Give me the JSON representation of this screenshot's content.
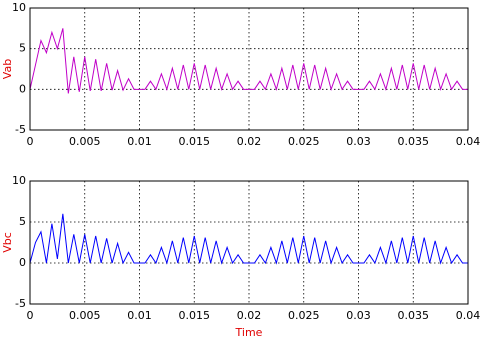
{
  "chart_data": [
    {
      "type": "line",
      "ylabel": "Vab",
      "x": [
        0,
        0.0005,
        0.001,
        0.0015,
        0.002,
        0.0025,
        0.003,
        0.0035,
        0.004,
        0.0045,
        0.005,
        0.0055,
        0.006,
        0.0065,
        0.007,
        0.0075,
        0.008,
        0.0085,
        0.009,
        0.0095,
        0.01,
        0.0105,
        0.011,
        0.0115,
        0.012,
        0.0125,
        0.013,
        0.0135,
        0.014,
        0.0145,
        0.015,
        0.0155,
        0.016,
        0.0165,
        0.017,
        0.0175,
        0.018,
        0.0185,
        0.019,
        0.0195,
        0.02,
        0.0205,
        0.021,
        0.0215,
        0.022,
        0.0225,
        0.023,
        0.0235,
        0.024,
        0.0245,
        0.025,
        0.0255,
        0.026,
        0.0265,
        0.027,
        0.0275,
        0.028,
        0.0285,
        0.029,
        0.0295,
        0.03,
        0.0305,
        0.031,
        0.0315,
        0.032,
        0.0325,
        0.033,
        0.0335,
        0.034,
        0.0345,
        0.035,
        0.0355,
        0.036,
        0.0365,
        0.037,
        0.0375,
        0.038,
        0.0385,
        0.039,
        0.0395,
        0.04
      ],
      "series": [
        {
          "color": "#c000c8",
          "values": [
            0,
            3,
            6,
            4.5,
            7,
            5,
            7.5,
            -0.5,
            4,
            -0.3,
            4,
            -0.2,
            3.7,
            -0.2,
            3.2,
            -0.1,
            2.3,
            -0.1,
            1.3,
            0,
            0,
            0,
            1,
            0,
            1.9,
            0,
            2.6,
            0,
            3,
            0,
            3.2,
            0,
            3,
            0,
            2.6,
            0,
            1.9,
            0,
            1,
            0,
            0,
            0,
            1,
            0,
            1.9,
            0,
            2.6,
            0,
            3,
            0,
            3.2,
            0,
            3,
            0,
            2.6,
            0,
            1.9,
            0,
            1,
            0,
            0,
            0,
            1,
            0,
            1.9,
            0,
            2.6,
            0,
            3,
            0,
            3.2,
            0,
            3,
            0,
            2.6,
            0,
            1.9,
            0,
            1,
            0,
            0
          ]
        }
      ],
      "xlim": [
        0,
        0.04
      ],
      "xticks": [
        0,
        0.005,
        0.01,
        0.015,
        0.02,
        0.025,
        0.03,
        0.035,
        0.04
      ],
      "ylim": [
        -5,
        10
      ],
      "yticks": [
        -5,
        0,
        5,
        10
      ],
      "grid": true
    },
    {
      "type": "line",
      "ylabel": "Vbc",
      "xlabel": "Time",
      "x": [
        0,
        0.0005,
        0.001,
        0.0015,
        0.002,
        0.0025,
        0.003,
        0.0035,
        0.004,
        0.0045,
        0.005,
        0.0055,
        0.006,
        0.0065,
        0.007,
        0.0075,
        0.008,
        0.0085,
        0.009,
        0.0095,
        0.01,
        0.0105,
        0.011,
        0.0115,
        0.012,
        0.0125,
        0.013,
        0.0135,
        0.014,
        0.0145,
        0.015,
        0.0155,
        0.016,
        0.0165,
        0.017,
        0.0175,
        0.018,
        0.0185,
        0.019,
        0.0195,
        0.02,
        0.0205,
        0.021,
        0.0215,
        0.022,
        0.0225,
        0.023,
        0.0235,
        0.024,
        0.0245,
        0.025,
        0.0255,
        0.026,
        0.0265,
        0.027,
        0.0275,
        0.028,
        0.0285,
        0.029,
        0.0295,
        0.03,
        0.0305,
        0.031,
        0.0315,
        0.032,
        0.0325,
        0.033,
        0.0335,
        0.034,
        0.0345,
        0.035,
        0.0355,
        0.036,
        0.0365,
        0.037,
        0.0375,
        0.038,
        0.0385,
        0.039,
        0.0395,
        0.04
      ],
      "series": [
        {
          "color": "#0000ff",
          "values": [
            0,
            2.5,
            3.8,
            0,
            4.8,
            0.5,
            6,
            0,
            3.5,
            0,
            3.5,
            0,
            3.3,
            0,
            3,
            0,
            2.4,
            0,
            1.3,
            0,
            0,
            0,
            1,
            0,
            1.9,
            0,
            2.7,
            0,
            3.1,
            0,
            3.3,
            0,
            3.1,
            0,
            2.7,
            0,
            1.9,
            0,
            1,
            0,
            0,
            0,
            1,
            0,
            1.9,
            0,
            2.7,
            0,
            3.1,
            0,
            3.3,
            0,
            3.1,
            0,
            2.7,
            0,
            1.9,
            0,
            1,
            0,
            0,
            0,
            1,
            0,
            1.9,
            0,
            2.7,
            0,
            3.1,
            0,
            3.3,
            0,
            3.1,
            0,
            2.7,
            0,
            1.9,
            0,
            1,
            0,
            0
          ]
        }
      ],
      "xlim": [
        0,
        0.04
      ],
      "xticks": [
        0,
        0.005,
        0.01,
        0.015,
        0.02,
        0.025,
        0.03,
        0.035,
        0.04
      ],
      "ylim": [
        -5,
        10
      ],
      "yticks": [
        -5,
        0,
        5,
        10
      ],
      "grid": true
    }
  ]
}
